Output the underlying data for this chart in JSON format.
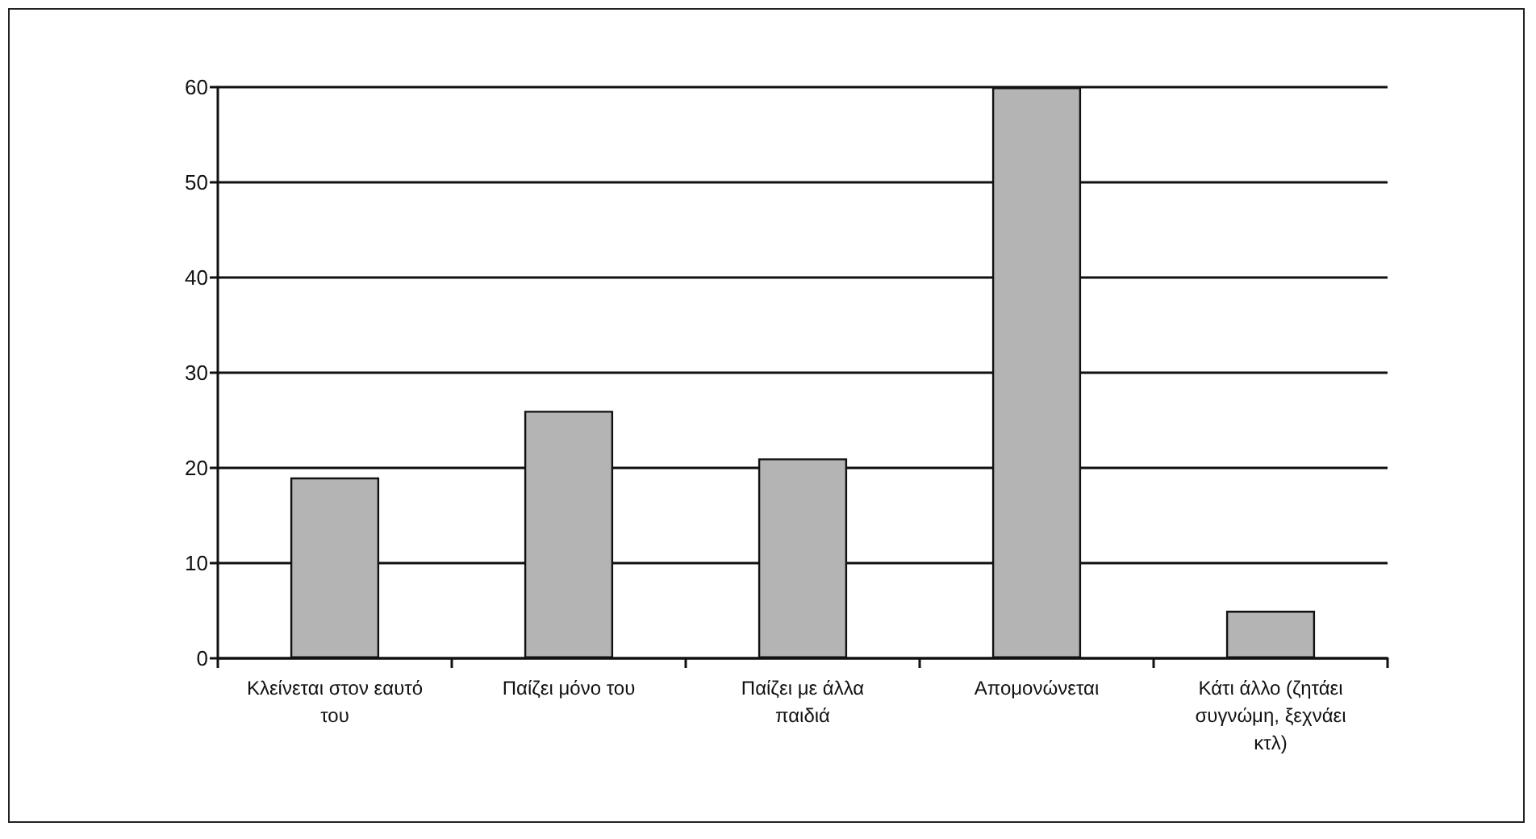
{
  "chart_data": {
    "type": "bar",
    "categories": [
      "Κλείνεται στον εαυτό του",
      "Παίζει μόνο του",
      "Παίζει με άλλα παιδιά",
      "Απομονώνεται",
      "Κάτι άλλο (ζητάει συγνώμη, ξεχνάει κτλ)"
    ],
    "values": [
      19,
      26,
      21,
      60,
      5
    ],
    "color": "#b4b4b4",
    "ylim": [
      0,
      60
    ],
    "yticks": [
      0,
      10,
      20,
      30,
      40,
      50,
      60
    ],
    "grid": "y"
  }
}
